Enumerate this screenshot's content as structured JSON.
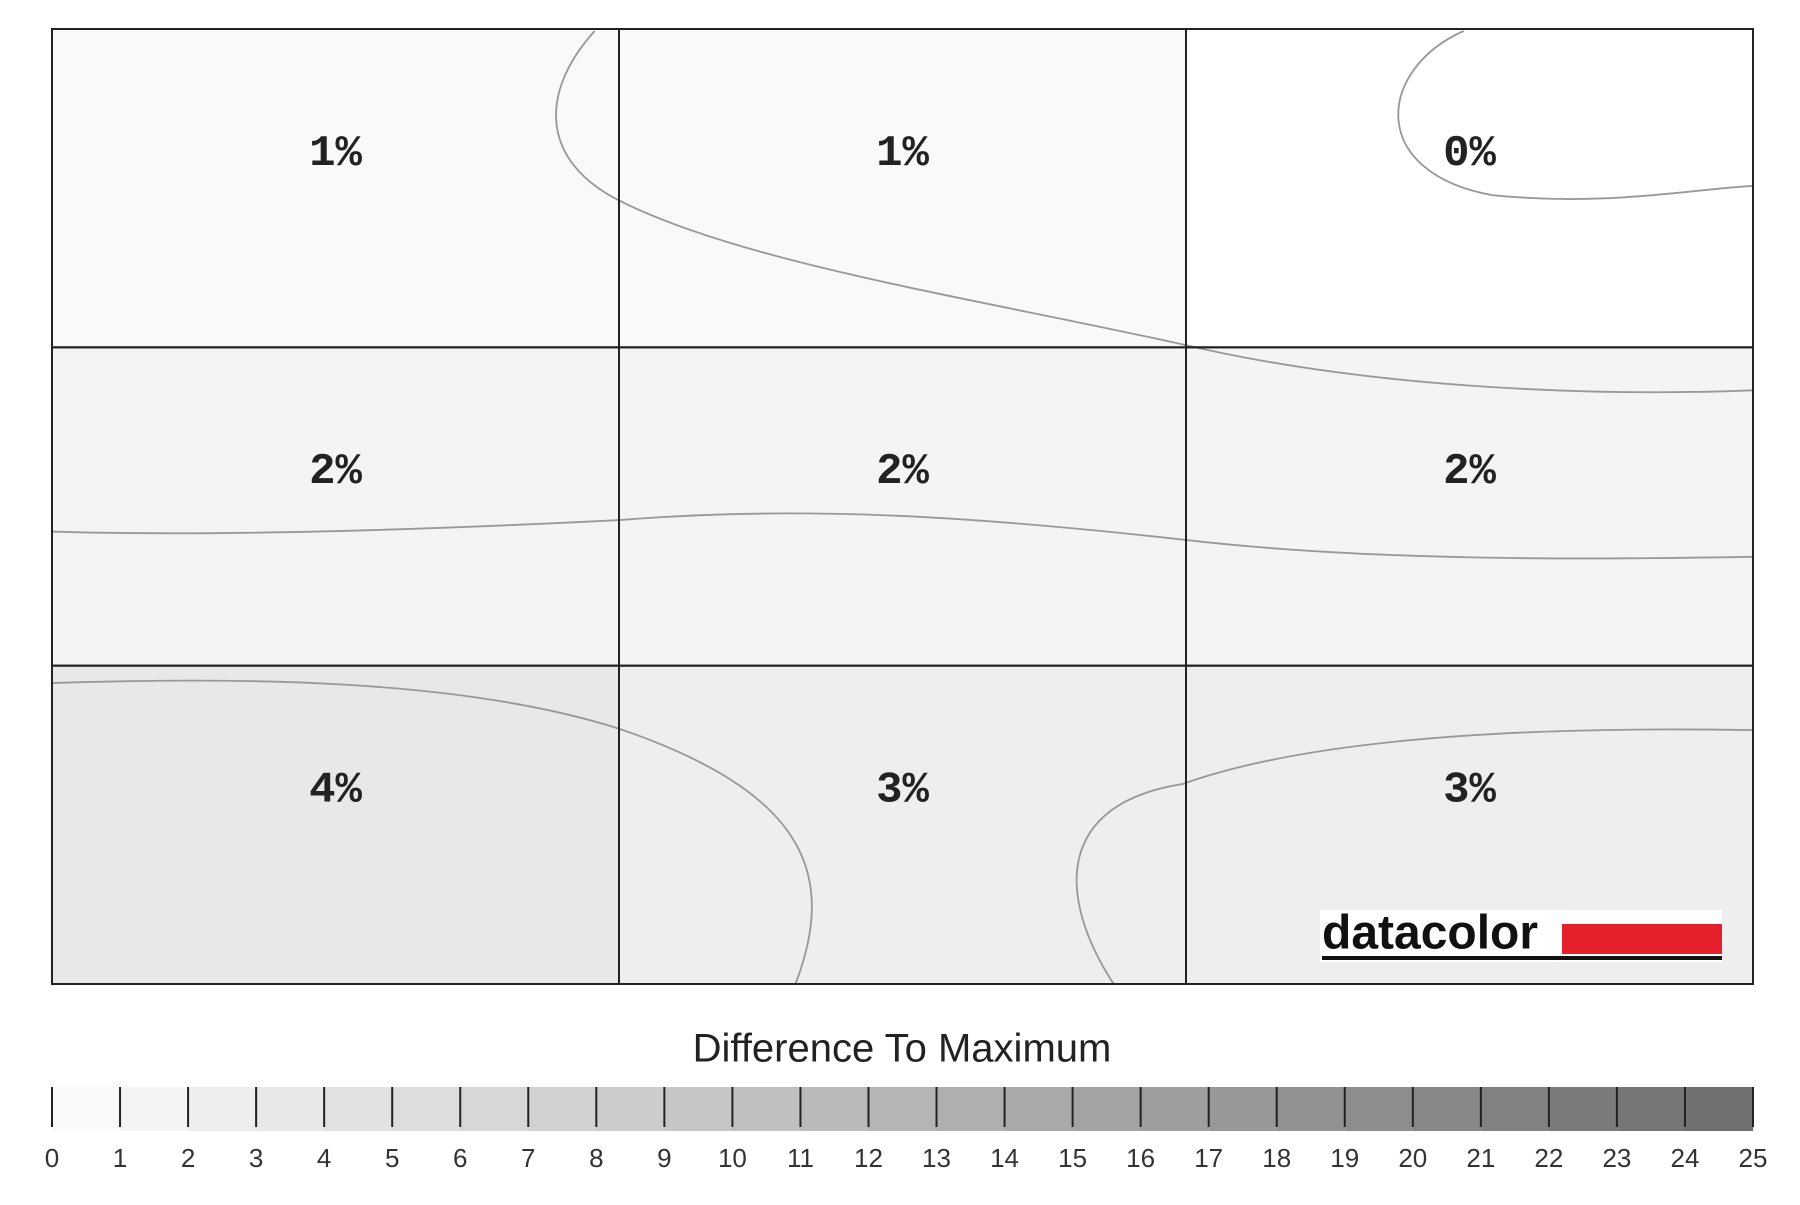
{
  "chart_data": {
    "type": "heatmap",
    "rows": [
      {
        "values": [
          1,
          1,
          0
        ],
        "value_labels": [
          "1%",
          "1%",
          "0%"
        ]
      },
      {
        "values": [
          2,
          2,
          2
        ],
        "value_labels": [
          "2%",
          "2%",
          "2%"
        ]
      },
      {
        "values": [
          4,
          3,
          3
        ],
        "value_labels": [
          "4%",
          "3%",
          "3%"
        ]
      }
    ],
    "colorbar_label": "Difference To Maximum",
    "clim": [
      0,
      25
    ],
    "cticks": [
      0,
      1,
      2,
      3,
      4,
      5,
      6,
      7,
      8,
      9,
      10,
      11,
      12,
      13,
      14,
      15,
      16,
      17,
      18,
      19,
      20,
      21,
      22,
      23,
      24,
      25
    ],
    "colors": [
      "#ffffff",
      "#707070"
    ],
    "logo": "datacolor"
  }
}
